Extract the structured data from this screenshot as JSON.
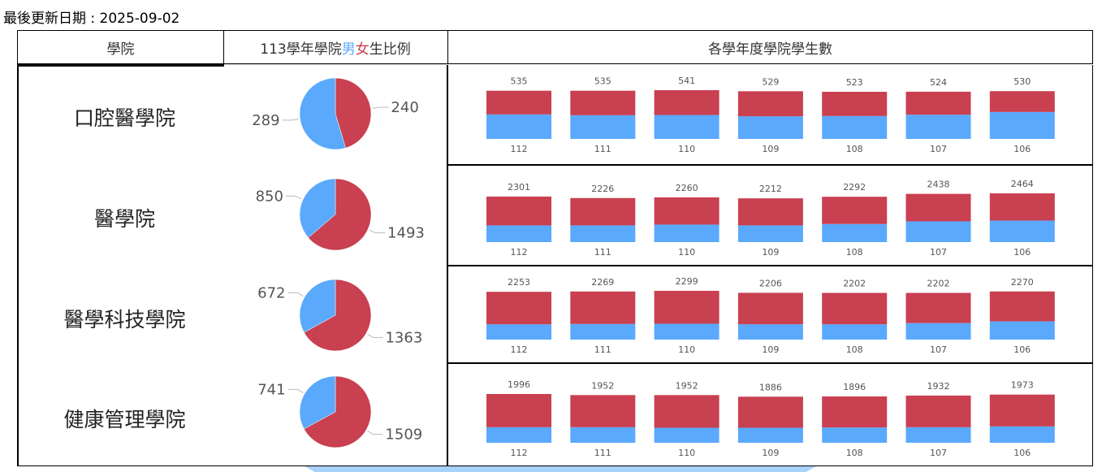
{
  "updated": "最後更新日期 : 2025-09-02",
  "header": {
    "col_college": "學院",
    "col_ratio_prefix": "113學年學院",
    "col_ratio_male": "男",
    "col_ratio_female": "女",
    "col_ratio_suffix": "生比例",
    "col_counts": "各學年度學院學生數"
  },
  "colors": {
    "male": "#5aa9fd",
    "female": "#c94050"
  },
  "chart_data": [
    {
      "type": "pie",
      "college": "口腔醫學院",
      "slices": [
        {
          "label": "男",
          "value": 289
        },
        {
          "label": "女",
          "value": 240
        }
      ]
    },
    {
      "type": "pie",
      "college": "醫學院",
      "slices": [
        {
          "label": "男",
          "value": 850
        },
        {
          "label": "女",
          "value": 1493
        }
      ]
    },
    {
      "type": "pie",
      "college": "醫學科技學院",
      "slices": [
        {
          "label": "男",
          "value": 672
        },
        {
          "label": "女",
          "value": 1363
        }
      ]
    },
    {
      "type": "pie",
      "college": "健康管理學院",
      "slices": [
        {
          "label": "男",
          "value": 741
        },
        {
          "label": "女",
          "value": 1509
        }
      ]
    },
    {
      "type": "bar",
      "stacked": true,
      "college": "口腔醫學院",
      "categories": [
        "112",
        "111",
        "110",
        "109",
        "108",
        "107",
        "106"
      ],
      "totals": [
        535,
        535,
        541,
        529,
        523,
        524,
        530
      ],
      "series": [
        {
          "values": [
            272,
            263,
            266,
            251,
            254,
            269,
            299
          ]
        },
        {
          "values": [
            263,
            272,
            275,
            278,
            269,
            255,
            231
          ]
        }
      ]
    },
    {
      "type": "bar",
      "stacked": true,
      "college": "醫學院",
      "categories": [
        "112",
        "111",
        "110",
        "109",
        "108",
        "107",
        "106"
      ],
      "totals": [
        2301,
        2226,
        2260,
        2212,
        2292,
        2438,
        2464
      ],
      "series": [
        {
          "values": [
            844,
            844,
            885,
            844,
            914,
            1048,
            1089
          ]
        },
        {
          "values": [
            1457,
            1382,
            1375,
            1368,
            1378,
            1390,
            1375
          ]
        }
      ]
    },
    {
      "type": "bar",
      "stacked": true,
      "college": "醫學科技學院",
      "categories": [
        "112",
        "111",
        "110",
        "109",
        "108",
        "107",
        "106"
      ],
      "totals": [
        2253,
        2269,
        2299,
        2206,
        2202,
        2202,
        2270
      ],
      "series": [
        {
          "values": [
            721,
            737,
            749,
            721,
            721,
            778,
            860
          ]
        },
        {
          "values": [
            1532,
            1532,
            1550,
            1485,
            1481,
            1424,
            1410
          ]
        }
      ]
    },
    {
      "type": "bar",
      "stacked": true,
      "college": "健康管理學院",
      "categories": [
        "112",
        "111",
        "110",
        "109",
        "108",
        "107",
        "106"
      ],
      "totals": [
        1996,
        1952,
        1952,
        1886,
        1896,
        1932,
        1973
      ],
      "series": [
        {
          "values": [
            638,
            638,
            615,
            615,
            626,
            638,
            670
          ]
        },
        {
          "values": [
            1358,
            1314,
            1337,
            1271,
            1270,
            1294,
            1303
          ]
        }
      ]
    }
  ]
}
